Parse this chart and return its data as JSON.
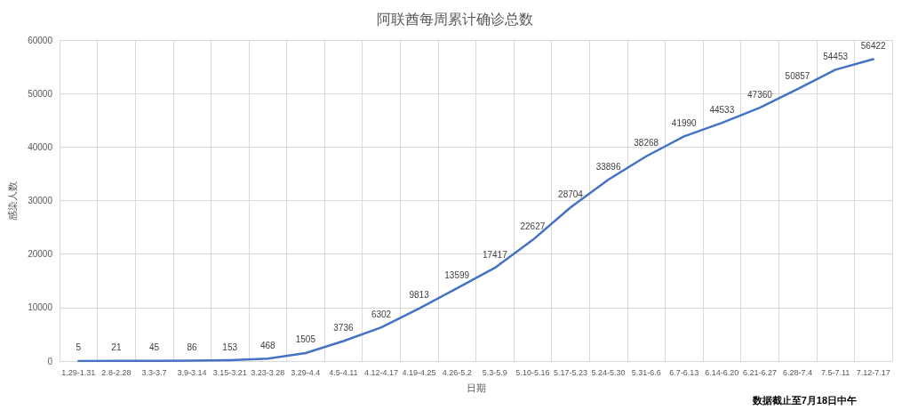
{
  "chart_data": {
    "type": "line",
    "title": "阿联酋每周累计确诊总数",
    "xlabel": "日期",
    "ylabel": "感染人数",
    "categories": [
      "1.29-1.31",
      "2.8-2.28",
      "3.3-3.7",
      "3.9-3.14",
      "3.15-3.21",
      "3.23-3.28",
      "3.29-4.4",
      "4.5-4.11",
      "4.12-4.17",
      "4.19-4.25",
      "4.26-5.2",
      "5.3-5.9",
      "5.10-5.16",
      "5.17-5.23",
      "5.24-5.30",
      "5.31-6.6",
      "6.7-6.13",
      "6.14-6.20",
      "6.21-6.27",
      "6.28-7.4",
      "7.5-7.11",
      "7.12-7.17"
    ],
    "values": [
      5,
      21,
      45,
      86,
      153,
      468,
      1505,
      3736,
      6302,
      9813,
      13599,
      17417,
      22627,
      28704,
      33896,
      38268,
      41990,
      44533,
      47360,
      50857,
      54453,
      56422
    ],
    "color": "#4472c4",
    "ylim": [
      0,
      60000
    ],
    "yticks": [
      0,
      10000,
      20000,
      30000,
      40000,
      50000,
      60000
    ],
    "grid": true,
    "data_labels": true,
    "marker": "none",
    "line_style": "solid",
    "annotations": [
      "数据截止至7月18日中午"
    ]
  }
}
